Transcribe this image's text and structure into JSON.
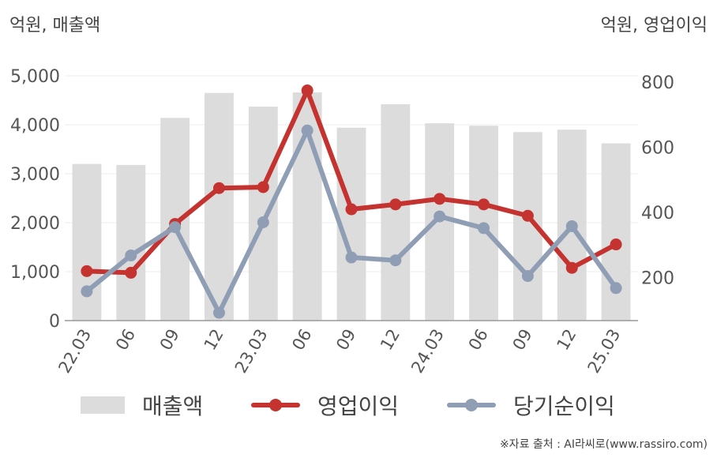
{
  "units": {
    "left": "억원, 매출액",
    "right": "억원, 영업이익"
  },
  "colors": {
    "revenue": "#dcdcdc",
    "op_profit": "#c4332f",
    "net_income": "#8f9db5"
  },
  "chart_data": {
    "type": "bar",
    "categories": [
      "22.03",
      "06",
      "09",
      "12",
      "23.03",
      "06",
      "09",
      "12",
      "24.03",
      "06",
      "09",
      "12",
      "25.03"
    ],
    "left_axis": {
      "ylim": [
        0,
        5000
      ],
      "ticks": [
        "0",
        "1,000",
        "2,000",
        "3,000",
        "4,000",
        "5,000"
      ]
    },
    "right_axis": {
      "ylim": [
        68,
        820
      ],
      "ticks": [
        "200",
        "400",
        "600",
        "800"
      ]
    },
    "grid": true,
    "legend_position": "bottom",
    "series": [
      {
        "name": "매출액",
        "type": "bar",
        "axis": "left",
        "values": [
          3200,
          3180,
          4140,
          4650,
          4370,
          4660,
          3940,
          4420,
          4030,
          3980,
          3850,
          3900,
          3620
        ]
      },
      {
        "name": "영업이익",
        "type": "line",
        "axis": "right",
        "values": [
          220,
          215,
          365,
          475,
          478,
          775,
          410,
          425,
          442,
          425,
          390,
          230,
          302
        ]
      },
      {
        "name": "당기순이익",
        "type": "line",
        "axis": "right",
        "values": [
          158,
          268,
          355,
          92,
          370,
          652,
          262,
          253,
          388,
          352,
          205,
          358,
          168
        ]
      }
    ]
  },
  "legend": {
    "revenue": "매출액",
    "op_profit": "영업이익",
    "net_income": "당기순이익"
  },
  "source": "※자료 출처 : AI라씨로(www.rassiro.com)"
}
